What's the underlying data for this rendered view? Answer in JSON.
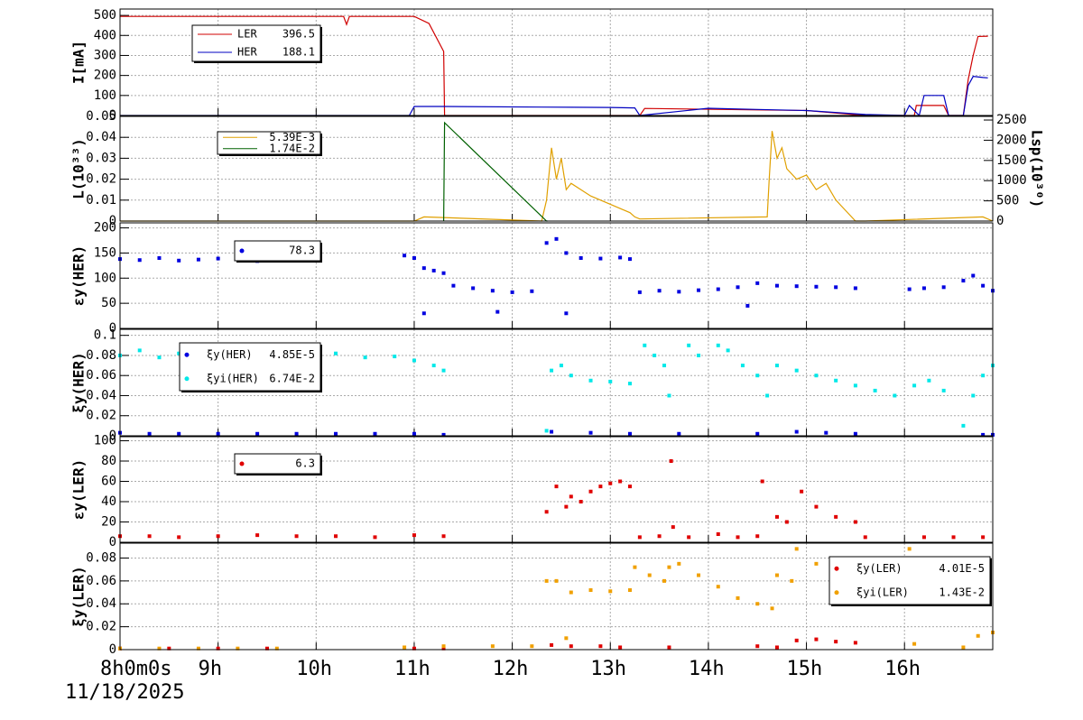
{
  "x_axis": {
    "xlim": [
      8,
      16.9
    ],
    "xticks": [
      {
        "value": 8,
        "label": "8h0m0s"
      },
      {
        "value": 9,
        "label": "9h"
      },
      {
        "value": 10,
        "label": "10h"
      },
      {
        "value": 11,
        "label": "11h"
      },
      {
        "value": 12,
        "label": "12h"
      },
      {
        "value": 13,
        "label": "13h"
      },
      {
        "value": 14,
        "label": "14h"
      },
      {
        "value": 15,
        "label": "15h"
      },
      {
        "value": 16,
        "label": "16h"
      }
    ],
    "date": "11/18/2025"
  },
  "chart_data": [
    {
      "type": "line",
      "ylabel": "I[mA]",
      "ylim": [
        0,
        532
      ],
      "yticks": [
        0,
        100,
        200,
        300,
        400,
        500
      ],
      "series": [
        {
          "name": "LER",
          "legend_label": "396.5",
          "color": "#d00000",
          "x": [
            8,
            10.28,
            10.31,
            10.34,
            11.0,
            11.15,
            11.3,
            11.31,
            13.3,
            13.35,
            14.5,
            15.0,
            15.6,
            16.1,
            16.12,
            16.4,
            16.45,
            16.6,
            16.65,
            16.7,
            16.75,
            16.85
          ],
          "values": [
            495,
            495,
            455,
            495,
            495,
            460,
            320,
            0,
            0,
            35,
            28,
            25,
            0,
            0,
            50,
            50,
            0,
            0,
            180,
            300,
            395,
            396.5
          ]
        },
        {
          "name": "HER",
          "legend_label": "188.1",
          "color": "#0000c0",
          "x": [
            8,
            10.95,
            11.0,
            11.3,
            12.3,
            13.0,
            13.25,
            13.3,
            14.0,
            14.5,
            15.0,
            15.6,
            16.0,
            16.05,
            16.15,
            16.2,
            16.4,
            16.45,
            16.6,
            16.65,
            16.7,
            16.8,
            16.85
          ],
          "values": [
            0,
            0,
            45,
            45,
            42,
            40,
            38,
            0,
            36,
            30,
            25,
            5,
            0,
            50,
            0,
            100,
            100,
            0,
            0,
            150,
            195,
            190,
            188.1
          ]
        }
      ]
    },
    {
      "type": "line",
      "ylabel": "L(10³³)",
      "y2label": "Lsp(10³⁰)",
      "ylim": [
        0,
        0.05
      ],
      "yticks": [
        0,
        0.01,
        0.02,
        0.03,
        0.04,
        0.05
      ],
      "y2lim": [
        0,
        2590
      ],
      "y2ticks": [
        0,
        500,
        1000,
        1500,
        2000,
        2500
      ],
      "series": [
        {
          "legend_label": "5.39E-3",
          "color": "#e0a000",
          "x": [
            8,
            11.0,
            11.1,
            12.3,
            12.35,
            12.4,
            12.45,
            12.5,
            12.55,
            12.6,
            12.7,
            12.8,
            12.9,
            13.0,
            13.1,
            13.2,
            13.25,
            13.3,
            14.6,
            14.62,
            14.65,
            14.7,
            14.75,
            14.8,
            14.9,
            15.0,
            15.1,
            15.2,
            15.3,
            15.4,
            15.5,
            15.6,
            16.8,
            16.9
          ],
          "values": [
            0,
            0,
            0.002,
            0,
            0.01,
            0.035,
            0.02,
            0.03,
            0.015,
            0.018,
            0.015,
            0.012,
            0.01,
            0.008,
            0.006,
            0.004,
            0.002,
            0.001,
            0.002,
            0.02,
            0.043,
            0.03,
            0.035,
            0.025,
            0.02,
            0.022,
            0.015,
            0.018,
            0.01,
            0.005,
            0,
            0,
            0.002,
            0
          ]
        },
        {
          "legend_label": "1.74E-2",
          "color": "#006000",
          "x": [
            11.3,
            11.31,
            12.35,
            12.36
          ],
          "values": [
            0,
            0.047,
            0,
            0
          ]
        }
      ]
    },
    {
      "type": "scatter",
      "ylabel": "εy(HER)",
      "ylim": [
        0,
        210
      ],
      "yticks": [
        0,
        50,
        100,
        150,
        200
      ],
      "series": [
        {
          "legend_label": "78.3",
          "color": "#0000e0",
          "x": [
            8.0,
            8.2,
            8.4,
            8.6,
            8.8,
            9.0,
            9.2,
            9.4,
            9.6,
            10.9,
            11.0,
            11.1,
            11.2,
            11.3,
            11.4,
            11.6,
            11.8,
            12.0,
            12.2,
            12.35,
            12.45,
            12.55,
            12.7,
            12.9,
            13.1,
            13.2,
            13.3,
            13.5,
            13.7,
            13.9,
            14.1,
            14.3,
            14.5,
            14.7,
            14.9,
            15.1,
            15.3,
            15.5,
            16.05,
            16.2,
            16.4,
            16.6,
            16.7,
            16.8,
            16.9,
            11.1,
            11.85,
            12.55,
            14.4
          ],
          "values": [
            138,
            136,
            140,
            135,
            137,
            139,
            141,
            134,
            136,
            145,
            140,
            120,
            115,
            110,
            85,
            80,
            75,
            72,
            74,
            170,
            178,
            150,
            140,
            139,
            141,
            138,
            72,
            75,
            73,
            76,
            78,
            82,
            90,
            85,
            84,
            83,
            82,
            80,
            78,
            80,
            82,
            95,
            105,
            85,
            75,
            30,
            33,
            30,
            45
          ]
        }
      ]
    },
    {
      "type": "scatter",
      "ylabel": "ξy(HER)",
      "ylim": [
        0,
        0.106
      ],
      "yticks": [
        0,
        0.02,
        0.04,
        0.06,
        0.08,
        0.1
      ],
      "series": [
        {
          "name": "ξy(HER)",
          "legend_label": "4.85E-5",
          "color": "#0000e0",
          "x": [
            8.0,
            8.3,
            8.6,
            9.0,
            9.4,
            9.8,
            10.2,
            10.6,
            11.0,
            11.3,
            12.4,
            12.8,
            13.2,
            13.7,
            14.5,
            14.9,
            15.2,
            15.5,
            16.8,
            16.9
          ],
          "values": [
            0.003,
            0.002,
            0.002,
            0.002,
            0.002,
            0.002,
            0.002,
            0.002,
            0.002,
            0.001,
            0.004,
            0.003,
            0.002,
            0.002,
            0.002,
            0.004,
            0.003,
            0.002,
            0.001,
            0.001
          ]
        },
        {
          "name": "ξyi(HER)",
          "legend_label": "6.74E-2",
          "color": "#00e8e8",
          "x": [
            8.0,
            8.2,
            8.4,
            8.6,
            8.8,
            9.0,
            9.3,
            9.6,
            9.9,
            10.2,
            10.5,
            10.8,
            11.0,
            11.2,
            11.3,
            12.35,
            12.4,
            12.5,
            12.6,
            12.8,
            13.0,
            13.2,
            13.35,
            13.45,
            13.55,
            13.6,
            13.8,
            13.9,
            14.1,
            14.2,
            14.35,
            14.5,
            14.6,
            14.7,
            14.9,
            15.1,
            15.3,
            15.5,
            15.7,
            15.9,
            16.1,
            16.25,
            16.4,
            16.6,
            16.7,
            16.8,
            16.9
          ],
          "values": [
            0.08,
            0.085,
            0.078,
            0.082,
            0.08,
            0.083,
            0.079,
            0.081,
            0.08,
            0.082,
            0.078,
            0.079,
            0.075,
            0.07,
            0.065,
            0.005,
            0.065,
            0.07,
            0.06,
            0.055,
            0.054,
            0.052,
            0.09,
            0.08,
            0.07,
            0.04,
            0.09,
            0.08,
            0.09,
            0.085,
            0.07,
            0.06,
            0.04,
            0.07,
            0.065,
            0.06,
            0.055,
            0.05,
            0.045,
            0.04,
            0.05,
            0.055,
            0.045,
            0.01,
            0.04,
            0.06,
            0.07
          ]
        }
      ]
    },
    {
      "type": "scatter",
      "ylabel": "εy(LER)",
      "ylim": [
        0,
        104
      ],
      "yticks": [
        0,
        20,
        40,
        60,
        80,
        100
      ],
      "series": [
        {
          "legend_label": "6.3",
          "color": "#e00000",
          "x": [
            8.0,
            8.3,
            8.6,
            9.0,
            9.4,
            9.8,
            10.2,
            10.6,
            11.0,
            11.3,
            12.35,
            12.45,
            12.55,
            12.6,
            12.7,
            12.8,
            12.9,
            13.0,
            13.1,
            13.2,
            13.3,
            13.5,
            13.62,
            13.64,
            13.8,
            14.1,
            14.3,
            14.5,
            14.55,
            14.7,
            14.8,
            14.95,
            15.1,
            15.3,
            15.5,
            15.6,
            16.2,
            16.5,
            16.8
          ],
          "values": [
            6,
            6,
            5,
            6,
            7,
            6,
            6,
            5,
            7,
            6,
            30,
            55,
            35,
            45,
            40,
            50,
            55,
            58,
            60,
            55,
            5,
            6,
            80,
            15,
            5,
            8,
            5,
            6,
            60,
            25,
            20,
            50,
            35,
            25,
            20,
            5,
            5,
            5,
            5
          ]
        }
      ]
    },
    {
      "type": "scatter",
      "ylabel": "ξy(LER)",
      "ylim": [
        0,
        0.093
      ],
      "yticks": [
        0,
        0.02,
        0.04,
        0.06,
        0.08
      ],
      "series": [
        {
          "name": "ξy(LER)",
          "legend_label": "4.01E-5",
          "color": "#e00000",
          "x": [
            8.0,
            8.5,
            9.0,
            9.5,
            11.0,
            11.3,
            12.4,
            12.6,
            12.9,
            13.1,
            13.6,
            14.5,
            14.7,
            14.9,
            15.1,
            15.3,
            15.5
          ],
          "values": [
            0.001,
            0.001,
            0.001,
            0.001,
            0.001,
            0.001,
            0.004,
            0.003,
            0.003,
            0.002,
            0.002,
            0.003,
            0.002,
            0.008,
            0.009,
            0.007,
            0.006
          ]
        },
        {
          "name": "ξyi(LER)",
          "legend_label": "1.43E-2",
          "color": "#f0a000",
          "x": [
            8.0,
            8.4,
            8.8,
            9.2,
            9.6,
            10.9,
            11.3,
            11.8,
            12.2,
            12.35,
            12.45,
            12.55,
            12.6,
            12.8,
            13.0,
            13.2,
            13.25,
            13.4,
            13.55,
            13.6,
            13.7,
            13.9,
            14.1,
            14.3,
            14.5,
            14.65,
            14.7,
            14.85,
            14.9,
            15.1,
            15.3,
            15.55,
            16.05,
            16.1,
            16.2,
            16.4,
            16.6,
            16.75,
            16.9
          ],
          "values": [
            0.001,
            0.001,
            0.001,
            0.001,
            0.001,
            0.002,
            0.003,
            0.003,
            0.003,
            0.06,
            0.06,
            0.01,
            0.05,
            0.052,
            0.051,
            0.052,
            0.072,
            0.065,
            0.06,
            0.072,
            0.075,
            0.065,
            0.055,
            0.045,
            0.04,
            0.036,
            0.065,
            0.06,
            0.088,
            0.075,
            0.065,
            0.055,
            0.088,
            0.005,
            0.045,
            0.042,
            0.002,
            0.012,
            0.015
          ]
        }
      ]
    }
  ]
}
